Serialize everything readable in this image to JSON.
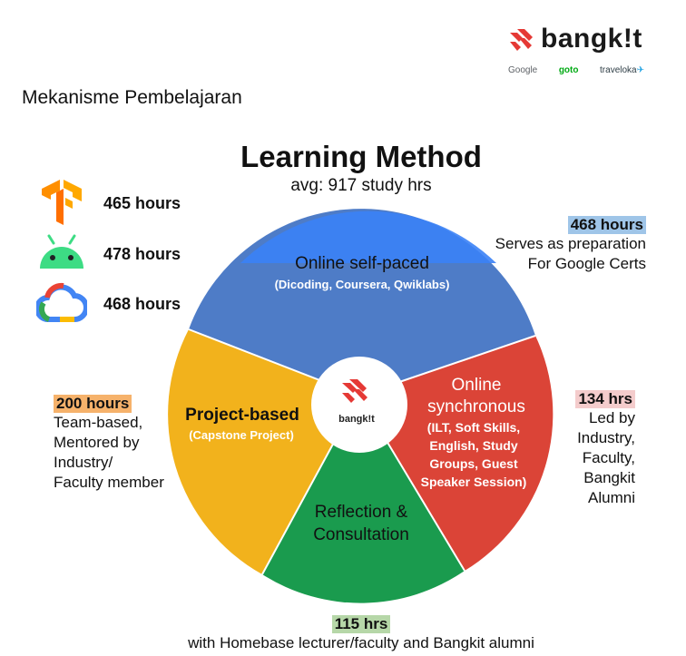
{
  "slide_title": "Mekanisme Pembelajaran",
  "brand": {
    "name": "bangk!t",
    "partners": [
      "Google",
      "goto",
      "traveloka"
    ]
  },
  "diagram": {
    "title": "Learning Method",
    "subtitle": "avg: 917 study hrs",
    "center_label": "bangk!t",
    "segments": [
      {
        "name": "Online self-paced",
        "detail": "(Dicoding, Coursera, Qwiklabs)",
        "color": "#4E7CC7"
      },
      {
        "name_lines": [
          "Online",
          "synchronous"
        ],
        "detail_lines": [
          "(ILT, Soft Skills,",
          "English, Study",
          "Groups, Guest",
          "Speaker Session)"
        ],
        "color": "#DB4437"
      },
      {
        "name_lines": [
          "Reflection &",
          "Consultation"
        ],
        "color": "#1A9B4E"
      },
      {
        "name": "Project-based",
        "detail": "(Capstone Project)",
        "color": "#F2B21C"
      }
    ],
    "top_cap_color": "#3B82F6"
  },
  "tech_hours": [
    {
      "icon": "tensorflow-icon",
      "hours": "465 hours"
    },
    {
      "icon": "android-icon",
      "hours": "478 hours"
    },
    {
      "icon": "google-cloud-icon",
      "hours": "468 hours"
    }
  ],
  "annotations": {
    "self_paced": {
      "hours": "468 hours",
      "highlight": "#9FC5E8",
      "lines": [
        "Serves as preparation",
        "For Google Certs"
      ]
    },
    "project": {
      "hours": "200 hours",
      "highlight": "#F6B26B",
      "lines": [
        "Team-based,",
        "Mentored by",
        "Industry/",
        "Faculty member"
      ]
    },
    "synchronous": {
      "hours": "134 hrs",
      "highlight": "#F4CCCC",
      "lines": [
        "Led by",
        "Industry,",
        "Faculty,",
        "Bangkit",
        "Alumni"
      ]
    },
    "reflection": {
      "hours": "115 hrs",
      "highlight": "#B6D7A8",
      "text": "with Homebase lecturer/faculty and Bangkit alumni"
    }
  }
}
